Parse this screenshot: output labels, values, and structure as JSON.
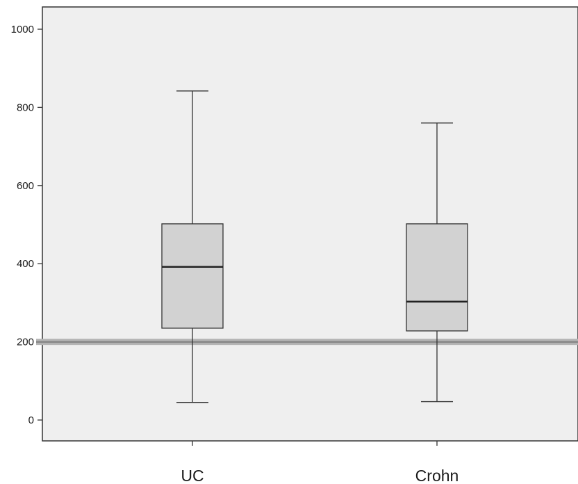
{
  "chart_data": {
    "type": "boxplot",
    "title": "",
    "xlabel": "",
    "ylabel": "",
    "ylim": [
      -55,
      1060
    ],
    "y_ticks": [
      0,
      200,
      400,
      600,
      800,
      1000
    ],
    "y_tick_labels": [
      "0",
      "200",
      "400",
      "600",
      "800",
      "1000"
    ],
    "categories": [
      "UC",
      "Crohn"
    ],
    "boxes": [
      {
        "category": "UC",
        "min": 45,
        "q1": 235,
        "median": 392,
        "q3": 502,
        "max": 842
      },
      {
        "category": "Crohn",
        "min": 47,
        "q1": 228,
        "median": 303,
        "q3": 502,
        "max": 760
      }
    ],
    "reference_line": {
      "y": 200
    },
    "grid": false,
    "legend": "none",
    "colors": {
      "plot_background": "#efefef",
      "box_fill": "#d2d2d2",
      "stroke": "#333333",
      "reference_line": "#8c8c8c"
    }
  }
}
